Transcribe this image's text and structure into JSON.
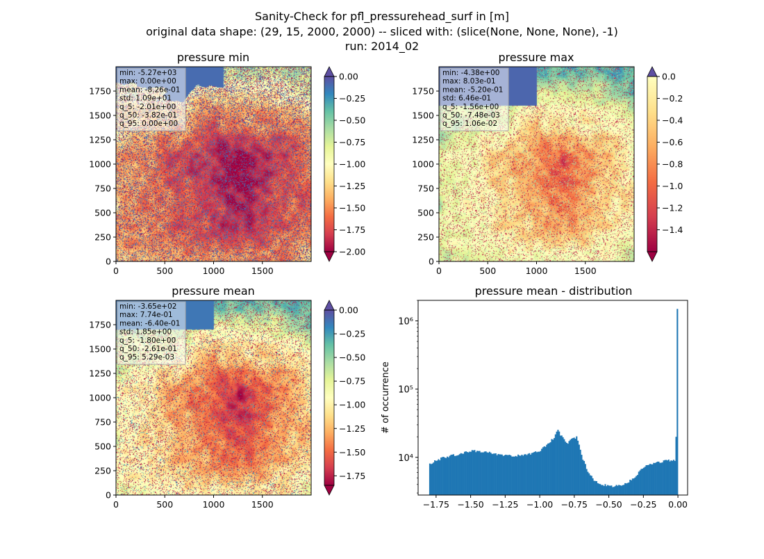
{
  "title_lines": [
    "Sanity-Check for pfl_pressurehead_surf in [m]",
    "original data shape: (29, 15, 2000, 2000) -- sliced with: (slice(None, None, None), -1)",
    "run: 2014_02"
  ],
  "chart_data": [
    {
      "type": "heatmap",
      "title": "pressure min",
      "x_ticks": [
        "0",
        "500",
        "1000",
        "1500"
      ],
      "y_ticks": [
        "0",
        "250",
        "500",
        "750",
        "1000",
        "1250",
        "1500",
        "1750"
      ],
      "colormap": "Spectral",
      "colorbar_range": [
        -2.0,
        0.0
      ],
      "colorbar_ticks": [
        "0.00",
        "−0.25",
        "−0.50",
        "−0.75",
        "−1.00",
        "−1.25",
        "−1.50",
        "−1.75",
        "−2.00"
      ],
      "colorbar_extend": "both",
      "stats": [
        "min: -5.27e+03",
        "max: 0.00e+00",
        "mean: -8.26e-01",
        "std: 1.09e+01",
        "q_5: -2.01e+00",
        "q_50: -3.82e-01",
        "q_95: 0.00e+00"
      ]
    },
    {
      "type": "heatmap",
      "title": "pressure max",
      "x_ticks": [
        "0",
        "500",
        "1000",
        "1500"
      ],
      "y_ticks": [
        "0",
        "250",
        "500",
        "750",
        "1000",
        "1250",
        "1500",
        "1750"
      ],
      "colormap": "Spectral",
      "colorbar_range": [
        -1.6,
        0.0
      ],
      "colorbar_ticks": [
        "0.0",
        "−0.2",
        "−0.4",
        "−0.6",
        "−0.8",
        "−1.0",
        "−1.2",
        "−1.4"
      ],
      "colorbar_extend": "both",
      "stats": [
        "min: -4.38e+00",
        "max: 8.03e-01",
        "mean: -5.20e-01",
        "std: 6.46e-01",
        "q_5: -1.56e+00",
        "q_50: -7.48e-03",
        "q_95: 1.06e-02"
      ]
    },
    {
      "type": "heatmap",
      "title": "pressure mean",
      "x_ticks": [
        "0",
        "500",
        "1000",
        "1500"
      ],
      "y_ticks": [
        "0",
        "250",
        "500",
        "750",
        "1000",
        "1250",
        "1500",
        "1750"
      ],
      "colormap": "Spectral",
      "colorbar_range": [
        -1.85,
        0.0
      ],
      "colorbar_ticks": [
        "0.00",
        "−0.25",
        "−0.50",
        "−0.75",
        "−1.00",
        "−1.25",
        "−1.50",
        "−1.75"
      ],
      "colorbar_extend": "both",
      "stats": [
        "min: -3.65e+02",
        "max: 7.74e-01",
        "mean: -6.40e-01",
        "std: 1.85e+00",
        "q_5: -1.80e+00",
        "q_50: -2.61e-01",
        "q_95: 5.29e-03"
      ]
    },
    {
      "type": "bar",
      "title": "pressure mean - distribution",
      "xlabel": "",
      "ylabel": "# of occurrence",
      "x_ticks": [
        "−1.75",
        "−1.50",
        "−1.25",
        "−1.00",
        "−0.75",
        "−0.50",
        "−0.25",
        "0.00"
      ],
      "y_scale": "log",
      "y_ticks": [
        "10⁴",
        "10⁵",
        "10⁶"
      ],
      "xlim": [
        -1.88,
        0.07
      ],
      "ylim": [
        2800,
        2000000
      ],
      "bar_color": "#1f77b4",
      "bin_range": [
        -1.8,
        0.0
      ],
      "counts_profile": [
        [
          -1.8,
          7800
        ],
        [
          -1.75,
          9000
        ],
        [
          -1.7,
          9800
        ],
        [
          -1.6,
          11000
        ],
        [
          -1.5,
          12500
        ],
        [
          -1.4,
          12000
        ],
        [
          -1.3,
          11000
        ],
        [
          -1.2,
          10500
        ],
        [
          -1.1,
          10800
        ],
        [
          -1.0,
          12500
        ],
        [
          -0.95,
          15000
        ],
        [
          -0.9,
          19000
        ],
        [
          -0.87,
          25000
        ],
        [
          -0.84,
          20000
        ],
        [
          -0.8,
          16000
        ],
        [
          -0.77,
          18500
        ],
        [
          -0.73,
          20000
        ],
        [
          -0.7,
          11000
        ],
        [
          -0.65,
          6000
        ],
        [
          -0.6,
          4500
        ],
        [
          -0.55,
          4000
        ],
        [
          -0.5,
          3800
        ],
        [
          -0.45,
          3800
        ],
        [
          -0.4,
          4000
        ],
        [
          -0.35,
          4500
        ],
        [
          -0.3,
          5500
        ],
        [
          -0.25,
          7000
        ],
        [
          -0.2,
          8000
        ],
        [
          -0.1,
          8800
        ],
        [
          -0.02,
          9200
        ],
        [
          -0.011,
          10000
        ],
        [
          -0.006,
          20000
        ],
        [
          0.0,
          1500000
        ]
      ]
    }
  ]
}
